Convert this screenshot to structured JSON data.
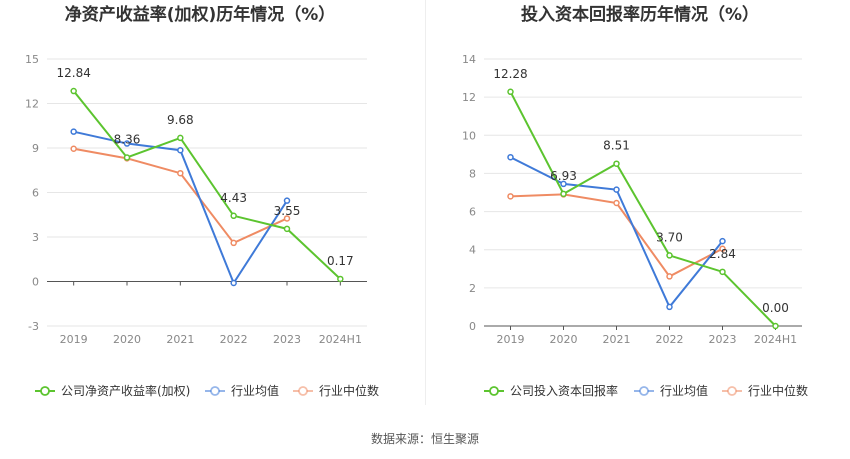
{
  "source": "数据来源：恒生聚源",
  "chart_data": [
    {
      "type": "line",
      "title": "净资产收益率(加权)历年情况（%）",
      "categories": [
        "2019",
        "2020",
        "2021",
        "2022",
        "2023",
        "2024H1"
      ],
      "y_ticks": [
        "15",
        "12",
        "9",
        "6",
        "3",
        "0",
        "-3"
      ],
      "ylim": [
        -3,
        15
      ],
      "series": [
        {
          "name": "公司净资产收益率(加权)",
          "color": "#5cc42f",
          "values": [
            12.84,
            8.36,
            9.68,
            4.43,
            3.55,
            0.17
          ],
          "labels": [
            "12.84",
            "8.36",
            "9.68",
            "4.43",
            "3.55",
            "0.17"
          ]
        },
        {
          "name": "行业均值",
          "color": "#3f7ad8",
          "values": [
            10.1,
            9.3,
            8.85,
            -0.1,
            5.45,
            null
          ]
        },
        {
          "name": "行业中位数",
          "color": "#ef8b63",
          "values": [
            8.95,
            8.3,
            7.3,
            2.6,
            4.25,
            null
          ]
        }
      ]
    },
    {
      "type": "line",
      "title": "投入资本回报率历年情况（%）",
      "categories": [
        "2019",
        "2020",
        "2021",
        "2022",
        "2023",
        "2024H1"
      ],
      "y_ticks": [
        "14",
        "12",
        "10",
        "8",
        "6",
        "4",
        "2",
        "0"
      ],
      "ylim": [
        0,
        14
      ],
      "series": [
        {
          "name": "公司投入资本回报率",
          "color": "#5cc42f",
          "values": [
            12.28,
            6.93,
            8.51,
            3.7,
            2.84,
            0.0
          ],
          "labels": [
            "12.28",
            "6.93",
            "8.51",
            "3.70",
            "2.84",
            "0.00"
          ]
        },
        {
          "name": "行业均值",
          "color": "#3f7ad8",
          "values": [
            8.85,
            7.45,
            7.15,
            1.0,
            4.45,
            null
          ]
        },
        {
          "name": "行业中位数",
          "color": "#ef8b63",
          "values": [
            6.8,
            6.9,
            6.45,
            2.6,
            4.05,
            null
          ]
        }
      ]
    }
  ]
}
